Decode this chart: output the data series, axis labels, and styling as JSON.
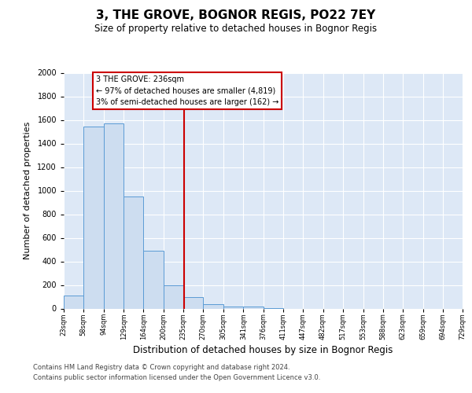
{
  "title": "3, THE GROVE, BOGNOR REGIS, PO22 7EY",
  "subtitle": "Size of property relative to detached houses in Bognor Regis",
  "xlabel": "Distribution of detached houses by size in Bognor Regis",
  "ylabel": "Number of detached properties",
  "bin_edges": [
    23,
    58,
    94,
    129,
    164,
    200,
    235,
    270,
    305,
    341,
    376,
    411,
    447,
    482,
    517,
    553,
    588,
    623,
    659,
    694,
    729
  ],
  "bar_heights": [
    110,
    1545,
    1570,
    950,
    490,
    200,
    100,
    35,
    20,
    15,
    5,
    0,
    0,
    0,
    0,
    0,
    0,
    0,
    0,
    0
  ],
  "bar_color": "#cdddf0",
  "bar_edge_color": "#5b9bd5",
  "vline_x": 236,
  "vline_color": "#cc0000",
  "ylim": [
    0,
    2000
  ],
  "yticks": [
    0,
    200,
    400,
    600,
    800,
    1000,
    1200,
    1400,
    1600,
    1800,
    2000
  ],
  "annotation_title": "3 THE GROVE: 236sqm",
  "annotation_line1": "← 97% of detached houses are smaller (4,819)",
  "annotation_line2": "3% of semi-detached houses are larger (162) →",
  "annotation_box_edge": "#cc0000",
  "bg_color": "#dde8f6",
  "footer_line1": "Contains HM Land Registry data © Crown copyright and database right 2024.",
  "footer_line2": "Contains public sector information licensed under the Open Government Licence v3.0."
}
